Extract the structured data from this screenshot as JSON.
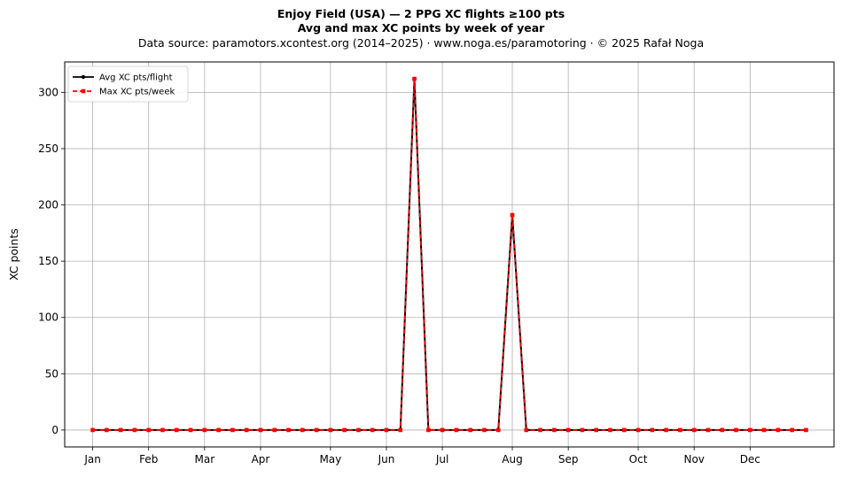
{
  "chart_data": {
    "type": "line",
    "title": "Enjoy Field (USA)  —  2 PPG XC flights ≥100 pts",
    "subtitle": "Avg and max XC points by week of year",
    "source": "Data source: paramotors.xcontest.org (2014–2025)  ·  www.noga.es/paramotoring  ·  © 2025 Rafał Noga",
    "xlabel": "",
    "ylabel": "XC points",
    "xlim": [
      -1,
      54
    ],
    "ylim": [
      -15,
      327
    ],
    "grid": true,
    "legend_position": "top-left",
    "month_ticks": [
      {
        "label": "Jan",
        "week": 1
      },
      {
        "label": "Feb",
        "week": 5
      },
      {
        "label": "Mar",
        "week": 9
      },
      {
        "label": "Apr",
        "week": 13
      },
      {
        "label": "May",
        "week": 18
      },
      {
        "label": "Jun",
        "week": 22
      },
      {
        "label": "Jul",
        "week": 26
      },
      {
        "label": "Aug",
        "week": 31
      },
      {
        "label": "Sep",
        "week": 35
      },
      {
        "label": "Oct",
        "week": 40
      },
      {
        "label": "Nov",
        "week": 44
      },
      {
        "label": "Dec",
        "week": 48
      }
    ],
    "y_ticks": [
      0,
      50,
      100,
      150,
      200,
      250,
      300
    ],
    "x": [
      1,
      2,
      3,
      4,
      5,
      6,
      7,
      8,
      9,
      10,
      11,
      12,
      13,
      14,
      15,
      16,
      17,
      18,
      19,
      20,
      21,
      22,
      23,
      24,
      25,
      26,
      27,
      28,
      29,
      30,
      31,
      32,
      33,
      34,
      35,
      36,
      37,
      38,
      39,
      40,
      41,
      42,
      43,
      44,
      45,
      46,
      47,
      48,
      49,
      50,
      51,
      52
    ],
    "series": [
      {
        "name": "Avg XC pts/flight",
        "color": "#000000",
        "style": "solid",
        "marker": "circle",
        "values": [
          0,
          0,
          0,
          0,
          0,
          0,
          0,
          0,
          0,
          0,
          0,
          0,
          0,
          0,
          0,
          0,
          0,
          0,
          0,
          0,
          0,
          0,
          0,
          312,
          0,
          0,
          0,
          0,
          0,
          0,
          191,
          0,
          0,
          0,
          0,
          0,
          0,
          0,
          0,
          0,
          0,
          0,
          0,
          0,
          0,
          0,
          0,
          0,
          0,
          0,
          0,
          0
        ]
      },
      {
        "name": "Max XC pts/week",
        "color": "#ff0000",
        "style": "dashed",
        "marker": "square",
        "values": [
          0,
          0,
          0,
          0,
          0,
          0,
          0,
          0,
          0,
          0,
          0,
          0,
          0,
          0,
          0,
          0,
          0,
          0,
          0,
          0,
          0,
          0,
          0,
          312,
          0,
          0,
          0,
          0,
          0,
          0,
          191,
          0,
          0,
          0,
          0,
          0,
          0,
          0,
          0,
          0,
          0,
          0,
          0,
          0,
          0,
          0,
          0,
          0,
          0,
          0,
          0,
          0
        ]
      }
    ]
  }
}
